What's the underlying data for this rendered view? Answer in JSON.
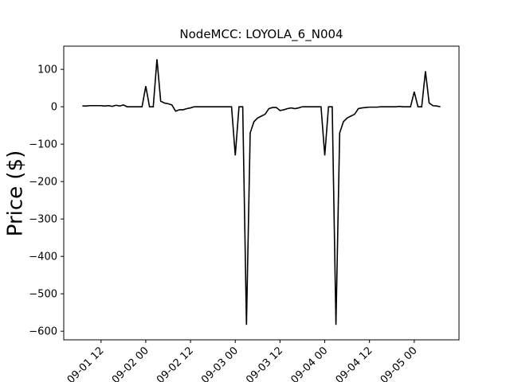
{
  "chart_data": {
    "type": "line",
    "title": "NodeMCC: LOYOLA_6_N004",
    "y_label": "Price ($)",
    "x": [
      "09-01 07",
      "09-01 08",
      "09-01 09",
      "09-01 10",
      "09-01 11",
      "09-01 12",
      "09-01 13",
      "09-01 14",
      "09-01 15",
      "09-01 16",
      "09-01 17",
      "09-01 18",
      "09-01 19",
      "09-01 20",
      "09-01 21",
      "09-01 22",
      "09-01 23",
      "09-02 00",
      "09-02 01",
      "09-02 02",
      "09-02 03",
      "09-02 04",
      "09-02 05",
      "09-02 06",
      "09-02 07",
      "09-02 08",
      "09-02 09",
      "09-02 10",
      "09-02 11",
      "09-02 12",
      "09-02 13",
      "09-02 14",
      "09-02 15",
      "09-02 16",
      "09-02 17",
      "09-02 18",
      "09-02 19",
      "09-02 20",
      "09-02 21",
      "09-02 22",
      "09-02 23",
      "09-03 00",
      "09-03 01",
      "09-03 02",
      "09-03 03",
      "09-03 04",
      "09-03 05",
      "09-03 06",
      "09-03 07",
      "09-03 08",
      "09-03 09",
      "09-03 10",
      "09-03 11",
      "09-03 12",
      "09-03 13",
      "09-03 14",
      "09-03 15",
      "09-03 16",
      "09-03 17",
      "09-03 18",
      "09-03 19",
      "09-03 20",
      "09-03 21",
      "09-03 22",
      "09-03 23",
      "09-04 00",
      "09-04 01",
      "09-04 02",
      "09-04 03",
      "09-04 04",
      "09-04 05",
      "09-04 06",
      "09-04 07",
      "09-04 08",
      "09-04 09",
      "09-04 10",
      "09-04 11",
      "09-04 12",
      "09-04 13",
      "09-04 14",
      "09-04 15",
      "09-04 16",
      "09-04 17",
      "09-04 18",
      "09-04 19",
      "09-04 20",
      "09-04 21",
      "09-04 22",
      "09-04 23",
      "09-05 00",
      "09-05 01",
      "09-05 02",
      "09-05 03",
      "09-05 04",
      "09-05 05",
      "09-05 06",
      "09-05 07"
    ],
    "series": [
      {
        "color": "#000000",
        "values": [
          2,
          2,
          3,
          3,
          3,
          3,
          2,
          3,
          1,
          4,
          2,
          5,
          0,
          0,
          0,
          0,
          0,
          55,
          0,
          0,
          127,
          15,
          10,
          8,
          5,
          -12,
          -8,
          -8,
          -5,
          -3,
          0,
          0,
          0,
          0,
          0,
          0,
          0,
          0,
          0,
          0,
          0,
          -130,
          0,
          0,
          -583,
          -70,
          -40,
          -30,
          -25,
          -20,
          -5,
          -2,
          -2,
          -10,
          -8,
          -5,
          -3,
          -5,
          -3,
          0,
          0,
          0,
          0,
          0,
          0,
          -130,
          0,
          0,
          -583,
          -70,
          -40,
          -30,
          -25,
          -20,
          -5,
          -3,
          -2,
          -1,
          -1,
          -1,
          0,
          0,
          0,
          0,
          0,
          1,
          0,
          0,
          0,
          40,
          0,
          0,
          95,
          10,
          3,
          2,
          0
        ]
      }
    ],
    "xlim": [
      "09-01 02",
      "09-05 12"
    ],
    "xticks": [
      "09-01 12",
      "09-02 00",
      "09-02 12",
      "09-03 00",
      "09-03 12",
      "09-04 00",
      "09-04 12",
      "09-05 00"
    ],
    "ylim": [
      -623,
      162
    ],
    "yticks": [
      {
        "value": -600,
        "label": "−600"
      },
      {
        "value": -500,
        "label": "−500"
      },
      {
        "value": -400,
        "label": "−400"
      },
      {
        "value": -300,
        "label": "−300"
      },
      {
        "value": -200,
        "label": "−200"
      },
      {
        "value": -100,
        "label": "−100"
      },
      0,
      100
    ]
  }
}
